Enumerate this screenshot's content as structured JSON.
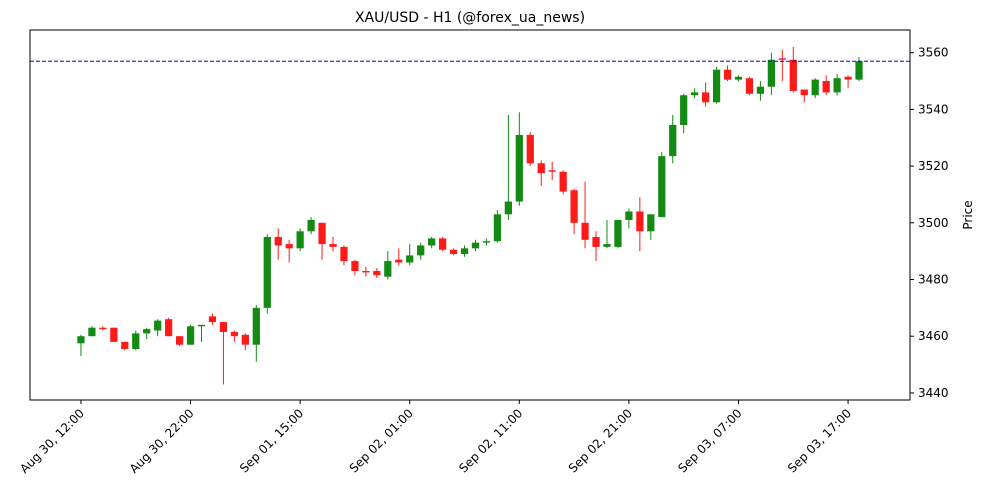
{
  "chart_data": {
    "type": "candlestick",
    "title": "XAU/USD - H1 (@forex_ua_news)",
    "y_label": "Price",
    "categories": [
      "Aug 30, 12:00",
      null,
      null,
      null,
      null,
      null,
      null,
      null,
      null,
      null,
      "Aug 30, 22:00",
      null,
      null,
      null,
      null,
      null,
      null,
      null,
      null,
      null,
      "Sep 01, 15:00",
      null,
      null,
      null,
      null,
      null,
      null,
      null,
      null,
      null,
      "Sep 02, 01:00",
      null,
      null,
      null,
      null,
      null,
      null,
      null,
      null,
      null,
      "Sep 02, 11:00",
      null,
      null,
      null,
      null,
      null,
      null,
      null,
      null,
      null,
      "Sep 02, 21:00",
      null,
      null,
      null,
      null,
      null,
      null,
      null,
      null,
      null,
      "Sep 03, 07:00",
      null,
      null,
      null,
      null,
      null,
      null,
      null,
      null,
      null,
      "Sep 03, 17:00",
      null
    ],
    "open": [
      3457.5,
      3460,
      3463,
      3463,
      3458,
      3455.5,
      3461,
      3462,
      3466,
      3460,
      3457,
      3463.5,
      3467,
      3465,
      3461.5,
      3460.5,
      3457,
      3470,
      3495,
      3492.5,
      3491,
      3497,
      3500,
      3492.5,
      3491.5,
      3486.5,
      3483,
      3483,
      3481,
      3487,
      3486,
      3488.5,
      3492,
      3494.5,
      3490.5,
      3489,
      3491,
      3493,
      3493.5,
      3503,
      3507.5,
      3531,
      3521,
      3518.5,
      3518,
      3511.5,
      3500,
      3495,
      3491.5,
      3491.5,
      3501,
      3504,
      3497,
      3502,
      3523.5,
      3534.5,
      3545,
      3546,
      3542.5,
      3554,
      3550.5,
      3551,
      3545.5,
      3548,
      3558,
      3557.5,
      3547,
      3545,
      3550,
      3546,
      3551.5,
      3550.5
    ],
    "high": [
      3460.5,
      3463.5,
      3463.5,
      3463,
      3458,
      3462,
      3463,
      3466,
      3466.5,
      3460,
      3464,
      3464,
      3468,
      3465,
      3462,
      3461,
      3471,
      3496,
      3498,
      3494,
      3498,
      3502,
      3500,
      3495,
      3492,
      3487,
      3484.5,
      3484,
      3490,
      3491,
      3492.5,
      3493,
      3495,
      3495,
      3491,
      3492,
      3494,
      3494.5,
      3504.5,
      3538,
      3539,
      3532,
      3522,
      3521.5,
      3518.5,
      3512,
      3514.5,
      3497,
      3501,
      3501,
      3505,
      3509,
      3503,
      3525,
      3538,
      3545.5,
      3547.5,
      3549.5,
      3555,
      3555.5,
      3552,
      3551.5,
      3550,
      3560,
      3561,
      3562,
      3547,
      3551,
      3552,
      3552.5,
      3552,
      3558.5
    ],
    "low": [
      3453,
      3460,
      3462,
      3458,
      3455,
      3455,
      3459,
      3460,
      3460,
      3456.5,
      3457,
      3458,
      3464,
      3443,
      3458,
      3455,
      3451,
      3468,
      3487,
      3486,
      3490,
      3496,
      3487,
      3490,
      3485,
      3481.5,
      3481,
      3480.5,
      3480,
      3485,
      3485,
      3487,
      3491,
      3490,
      3488.5,
      3488,
      3490,
      3492,
      3493,
      3501,
      3506,
      3520,
      3513,
      3515,
      3510,
      3496,
      3491,
      3486.5,
      3491,
      3491,
      3498,
      3490,
      3494,
      3502,
      3521,
      3531.5,
      3544,
      3541,
      3542,
      3550,
      3550,
      3545,
      3543,
      3545,
      3550,
      3546,
      3542.5,
      3544,
      3545,
      3545,
      3547.5,
      3550
    ],
    "close": [
      3460,
      3463,
      3462.5,
      3458,
      3455.5,
      3461,
      3462.5,
      3465.5,
      3460,
      3457,
      3463.5,
      3464,
      3465,
      3461.5,
      3460,
      3457,
      3470,
      3495,
      3492,
      3491,
      3497,
      3501,
      3492.5,
      3491.5,
      3486.5,
      3483,
      3482.5,
      3481.5,
      3486.5,
      3486,
      3488.5,
      3492,
      3494.5,
      3490.5,
      3489,
      3491,
      3493,
      3493.5,
      3503,
      3507.5,
      3531,
      3521,
      3517.5,
      3518,
      3511,
      3500,
      3494,
      3491.5,
      3492.5,
      3501,
      3504,
      3497,
      3503,
      3523.5,
      3534.5,
      3545,
      3546,
      3542.5,
      3554,
      3550.5,
      3551.5,
      3545.5,
      3548,
      3557.5,
      3557.5,
      3546.5,
      3545,
      3550.5,
      3546,
      3551,
      3550.5,
      3557
    ],
    "up_color": "#138a13",
    "down_color": "#ff1a1a",
    "hline": {
      "value": 3557,
      "color": "#0000ff"
    },
    "ylim": [
      3437.5,
      3568
    ],
    "yticks": [
      3440,
      3460,
      3480,
      3500,
      3520,
      3540,
      3560
    ],
    "y_axis_side": "right"
  }
}
